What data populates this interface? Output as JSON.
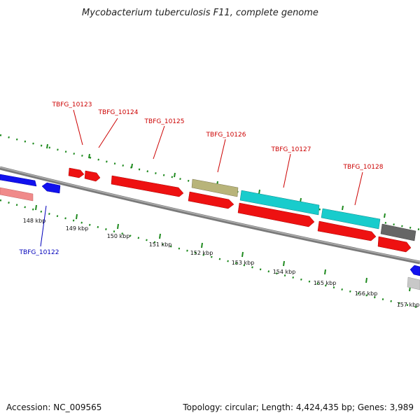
{
  "title": "Mycobacterium tuberculosis F11, complete genome",
  "footer": {
    "accession": "Accession: NC_009565",
    "summary": "Topology: circular; Length: 4,424,435 bp; Genes: 3,989"
  },
  "colors": {
    "backbone": "#8a8a8a",
    "tick": "#1e8a1e",
    "label_forward": "#cc0000",
    "label_reverse": "#0000bb",
    "red": "#ee1111",
    "blue": "#1111ee",
    "pink": "#f08a8a",
    "cyan": "#18cccc",
    "olive": "#b8b47a",
    "darkgray": "#666666",
    "lightgray": "#c8c8c8"
  },
  "scale_labels": [
    "148 kbp",
    "149 kbp",
    "150 kbp",
    "151 kbp",
    "152 kbp",
    "153 kbp",
    "154 kbp",
    "155 kbp",
    "156 kbp",
    "157 kbp"
  ],
  "gene_labels": [
    {
      "text": "TBFG_10123",
      "strand": "forward"
    },
    {
      "text": "TBFG_10124",
      "strand": "forward"
    },
    {
      "text": "TBFG_10125",
      "strand": "forward"
    },
    {
      "text": "TBFG_10126",
      "strand": "forward"
    },
    {
      "text": "TBFG_10127",
      "strand": "forward"
    },
    {
      "text": "TBFG_10128",
      "strand": "forward"
    },
    {
      "text": "TBFG_10122",
      "strand": "reverse"
    }
  ]
}
